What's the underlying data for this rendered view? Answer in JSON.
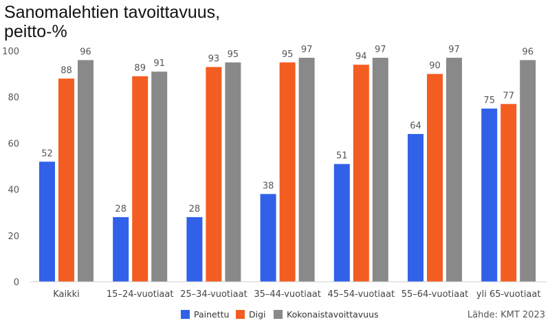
{
  "chart_data": {
    "type": "bar",
    "title_lines": [
      "Sanomalehtien tavoittavuus,",
      "peitto-%"
    ],
    "categories": [
      "Kaikki",
      "15–24-vuotiaat",
      "25–34-vuotiaat",
      "35–44-vuotiaat",
      "45–54-vuotiaat",
      "55–64-vuotiaat",
      "yli 65-vuotiaat"
    ],
    "series": [
      {
        "name": "Painettu",
        "color": "#3061e8",
        "values": [
          52,
          28,
          28,
          38,
          51,
          64,
          75
        ]
      },
      {
        "name": "Digi",
        "color": "#f45d21",
        "values": [
          88,
          89,
          93,
          95,
          94,
          90,
          77
        ]
      },
      {
        "name": "Kokonaistavoittavuus",
        "color": "#898989",
        "values": [
          96,
          91,
          95,
          97,
          97,
          97,
          96
        ]
      }
    ],
    "ylim": [
      0,
      100
    ],
    "yticks": [
      0,
      20,
      40,
      60,
      80,
      100
    ],
    "grid": false,
    "legend": "bottom-center",
    "source": "Lähde: KMT 2023"
  }
}
